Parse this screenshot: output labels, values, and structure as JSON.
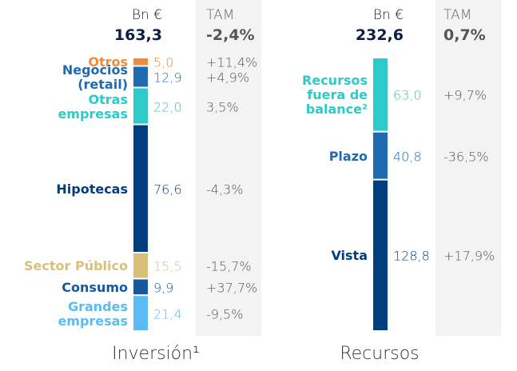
{
  "chart_data": [
    {
      "type": "stacked_bar",
      "title": "Inversión¹",
      "value_header": "Bn €",
      "growth_header": "TAM",
      "total": 163.3,
      "total_label": "163,3",
      "total_growth": -2.4,
      "total_growth_label": "-2,4%",
      "categories": [
        "Otros",
        "Negocios (retail)",
        "Otras empresas",
        "Hipotecas",
        "Sector Público",
        "Consumo",
        "Grandes empresas"
      ],
      "values": [
        5.0,
        12.9,
        22.0,
        76.6,
        15.5,
        9.9,
        21.4
      ],
      "value_labels": [
        "5,0",
        "12,9",
        "22,0",
        "76,6",
        "15,5",
        "9,9",
        "21,4"
      ],
      "growth": [
        11.4,
        4.9,
        3.5,
        -4.3,
        -15.7,
        37.7,
        -9.5
      ],
      "growth_labels": [
        "+11,4%",
        "+4,9%",
        "3,5%",
        "-4,3%",
        "-15,7%",
        "+37,7%",
        "-9,5%"
      ],
      "colors": [
        "#f08a3c",
        "#1f6bb0",
        "#2ec9c9",
        "#003f7f",
        "#d9c07a",
        "#15589f",
        "#5bbcf5"
      ]
    },
    {
      "type": "stacked_bar",
      "title": "Recursos",
      "value_header": "Bn €",
      "growth_header": "TAM",
      "total": 232.6,
      "total_label": "232,6",
      "total_growth": 0.7,
      "total_growth_label": "0,7%",
      "categories": [
        "Recursos fuera de balance²",
        "Plazo",
        "Vista"
      ],
      "values": [
        63.0,
        40.8,
        128.8
      ],
      "value_labels": [
        "63,0",
        "40,8",
        "128,8"
      ],
      "growth": [
        9.7,
        -36.5,
        17.9
      ],
      "growth_labels": [
        "+9,7%",
        "-36,5%",
        "+17,9%"
      ],
      "colors": [
        "#2ec9c9",
        "#1f6bb0",
        "#003f7f"
      ]
    }
  ]
}
